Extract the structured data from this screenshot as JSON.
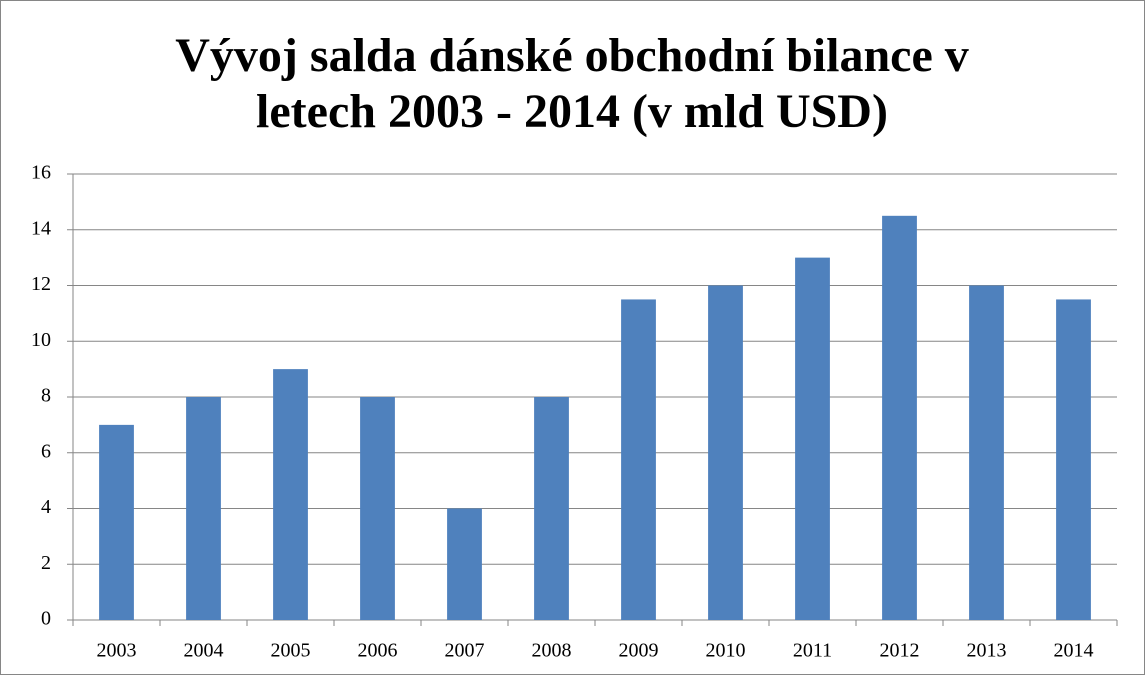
{
  "chart_data": {
    "type": "bar",
    "title": "Vývoj salda dánské obchodní bilance v letech 2003 - 2014 (v mld USD)",
    "categories": [
      "2003",
      "2004",
      "2005",
      "2006",
      "2007",
      "2008",
      "2009",
      "2010",
      "2011",
      "2012",
      "2013",
      "2014"
    ],
    "values": [
      7,
      8,
      9,
      8,
      4,
      8,
      11.5,
      12,
      13,
      14.5,
      12,
      11.5
    ],
    "color": "#4f81bd",
    "ylim": [
      0,
      16
    ],
    "yticks": [
      0,
      2,
      4,
      6,
      8,
      10,
      12,
      14,
      16
    ],
    "grid": true
  }
}
